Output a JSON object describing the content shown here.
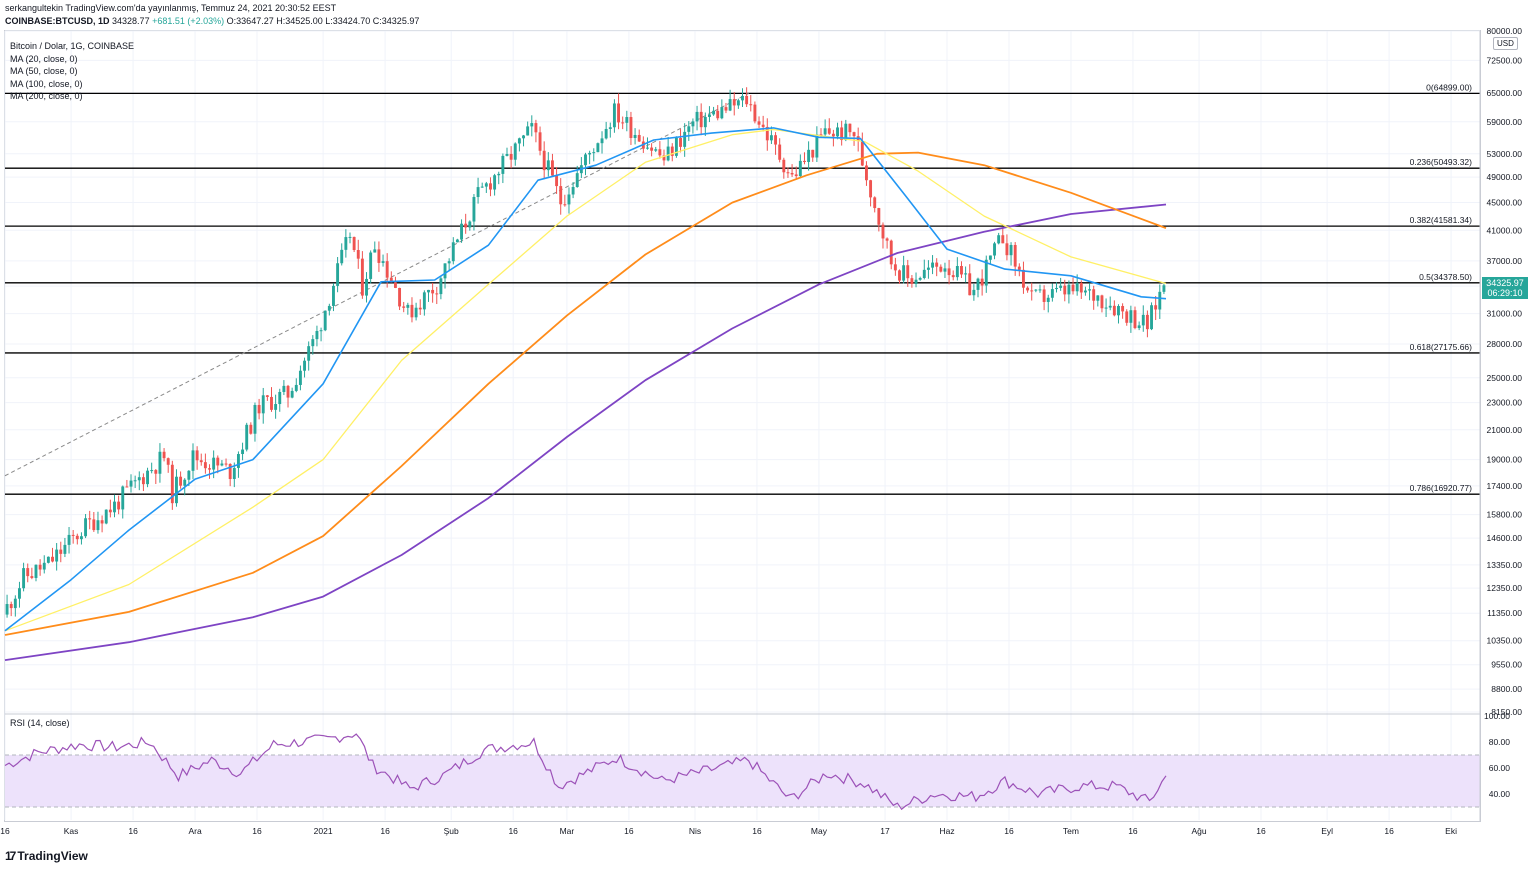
{
  "header": {
    "publisher_line": "serkangultekin TradingView.com'da yayınlanmış, Temmuz 24, 2021 20:30:52 EEST",
    "symbol": "COINBASE:BTCUSD, 1D",
    "last": "34328.77",
    "change": "+681.51 (+2.03%)",
    "ohlc": "O:33647.27 H:34525.00 L:33424.70 C:34325.97"
  },
  "legend": {
    "title": "Bitcoin / Dolar, 1G, COINBASE",
    "ma20": "MA (20, close, 0)",
    "ma50": "MA (50, close, 0)",
    "ma100": "MA (100, close, 0)",
    "ma200": "MA (200, close, 0)"
  },
  "rsi_label": "RSI (14, close)",
  "currency": "USD",
  "price_badge": {
    "price": "34325.97",
    "countdown": "06:29:10"
  },
  "footer": {
    "logo_text": "TradingView",
    "logo_glyph": "17"
  },
  "colors": {
    "up": "#26a69a",
    "down": "#ef5350",
    "ma20": "#2196f3",
    "ma50": "#fff066",
    "ma100": "#ff8c1a",
    "ma200": "#7e44c4",
    "rsi": "#9c52b8",
    "rsi_band": "#ede2fb"
  },
  "chart_data": {
    "type": "candlestick",
    "title": "Bitcoin / Dolar, 1G, COINBASE",
    "y_scale": "log",
    "ylim": [
      8150,
      80000
    ],
    "y_ticks": [
      80000,
      72500,
      65000,
      59000,
      53000,
      49000,
      45000,
      41000,
      37000,
      34000,
      31000,
      28000,
      25000,
      23000,
      21000,
      19000,
      17400,
      15800,
      14600,
      13350,
      12350,
      11350,
      10350,
      9550,
      8800,
      8150
    ],
    "x_ticks": [
      "16",
      "Kas",
      "16",
      "Ara",
      "16",
      "2021",
      "16",
      "Şub",
      "16",
      "Mar",
      "16",
      "Nis",
      "16",
      "May",
      "17",
      "Haz",
      "16",
      "Tem",
      "16",
      "Ağu",
      "16",
      "Eyl",
      "16",
      "Eki"
    ],
    "x_tick_dates": [
      "2020-10-16",
      "2020-11-01",
      "2020-11-16",
      "2020-12-01",
      "2020-12-16",
      "2021-01-01",
      "2021-01-16",
      "2021-02-01",
      "2021-02-16",
      "2021-03-01",
      "2021-03-16",
      "2021-04-01",
      "2021-04-16",
      "2021-05-01",
      "2021-05-17",
      "2021-06-01",
      "2021-06-16",
      "2021-07-01",
      "2021-07-16",
      "2021-08-01",
      "2021-08-16",
      "2021-09-01",
      "2021-09-16",
      "2021-10-01"
    ],
    "x_range": [
      "2020-10-16",
      "2021-10-08"
    ],
    "price_path": [
      [
        "2020-10-16",
        11300
      ],
      [
        "2020-10-21",
        12800
      ],
      [
        "2020-10-27",
        13400
      ],
      [
        "2020-11-05",
        15200
      ],
      [
        "2020-11-12",
        16300
      ],
      [
        "2020-11-18",
        17800
      ],
      [
        "2020-11-24",
        19200
      ],
      [
        "2020-11-26",
        17000
      ],
      [
        "2020-12-01",
        19200
      ],
      [
        "2020-12-10",
        18300
      ],
      [
        "2020-12-17",
        22800
      ],
      [
        "2020-12-24",
        23700
      ],
      [
        "2020-12-31",
        29000
      ],
      [
        "2021-01-08",
        40500
      ],
      [
        "2021-01-11",
        34000
      ],
      [
        "2021-01-14",
        39200
      ],
      [
        "2021-01-22",
        31000
      ],
      [
        "2021-01-29",
        34200
      ],
      [
        "2021-02-08",
        46000
      ],
      [
        "2021-02-21",
        57500
      ],
      [
        "2021-02-28",
        45200
      ],
      [
        "2021-03-13",
        61000
      ],
      [
        "2021-03-25",
        52000
      ],
      [
        "2021-04-01",
        58700
      ],
      [
        "2021-04-14",
        63500
      ],
      [
        "2021-04-25",
        49000
      ],
      [
        "2021-05-03",
        57000
      ],
      [
        "2021-05-10",
        56800
      ],
      [
        "2021-05-19",
        37000
      ],
      [
        "2021-05-23",
        34800
      ],
      [
        "2021-06-01",
        36700
      ],
      [
        "2021-06-08",
        33400
      ],
      [
        "2021-06-15",
        40200
      ],
      [
        "2021-06-22",
        32500
      ],
      [
        "2021-07-01",
        33500
      ],
      [
        "2021-07-08",
        32900
      ],
      [
        "2021-07-20",
        29800
      ],
      [
        "2021-07-24",
        34326
      ]
    ],
    "ma20": [
      [
        "2020-10-16",
        10700
      ],
      [
        "2020-11-01",
        12700
      ],
      [
        "2020-11-15",
        15000
      ],
      [
        "2020-12-01",
        17800
      ],
      [
        "2020-12-15",
        19000
      ],
      [
        "2021-01-01",
        24500
      ],
      [
        "2021-01-15",
        34500
      ],
      [
        "2021-01-28",
        34700
      ],
      [
        "2021-02-10",
        39000
      ],
      [
        "2021-02-22",
        48500
      ],
      [
        "2021-03-08",
        51000
      ],
      [
        "2021-03-22",
        55500
      ],
      [
        "2021-04-05",
        56800
      ],
      [
        "2021-04-20",
        57800
      ],
      [
        "2021-05-01",
        56000
      ],
      [
        "2021-05-11",
        55800
      ],
      [
        "2021-05-22",
        46000
      ],
      [
        "2021-06-01",
        38500
      ],
      [
        "2021-06-15",
        36000
      ],
      [
        "2021-07-01",
        35200
      ],
      [
        "2021-07-18",
        32800
      ],
      [
        "2021-07-24",
        32600
      ]
    ],
    "ma50": [
      [
        "2020-10-16",
        10700
      ],
      [
        "2020-11-15",
        12500
      ],
      [
        "2020-12-15",
        16200
      ],
      [
        "2021-01-01",
        19000
      ],
      [
        "2021-01-20",
        26500
      ],
      [
        "2021-02-10",
        34200
      ],
      [
        "2021-03-01",
        43000
      ],
      [
        "2021-03-20",
        51500
      ],
      [
        "2021-04-10",
        56500
      ],
      [
        "2021-04-20",
        57500
      ],
      [
        "2021-05-12",
        55200
      ],
      [
        "2021-05-25",
        50000
      ],
      [
        "2021-06-10",
        43000
      ],
      [
        "2021-07-01",
        37500
      ],
      [
        "2021-07-24",
        34300
      ]
    ],
    "ma100": [
      [
        "2020-10-16",
        10550
      ],
      [
        "2020-11-15",
        11400
      ],
      [
        "2020-12-15",
        13000
      ],
      [
        "2021-01-01",
        14700
      ],
      [
        "2021-01-20",
        18600
      ],
      [
        "2021-02-10",
        24500
      ],
      [
        "2021-03-01",
        30800
      ],
      [
        "2021-03-20",
        37800
      ],
      [
        "2021-04-10",
        45000
      ],
      [
        "2021-04-28",
        49300
      ],
      [
        "2021-05-15",
        53000
      ],
      [
        "2021-05-25",
        53200
      ],
      [
        "2021-06-10",
        51000
      ],
      [
        "2021-07-01",
        46500
      ],
      [
        "2021-07-24",
        41300
      ]
    ],
    "ma200": [
      [
        "2020-10-16",
        9700
      ],
      [
        "2020-11-15",
        10300
      ],
      [
        "2020-12-15",
        11200
      ],
      [
        "2021-01-01",
        12000
      ],
      [
        "2021-01-20",
        13800
      ],
      [
        "2021-02-10",
        16700
      ],
      [
        "2021-03-01",
        20500
      ],
      [
        "2021-03-20",
        24800
      ],
      [
        "2021-04-10",
        29500
      ],
      [
        "2021-05-01",
        34200
      ],
      [
        "2021-05-20",
        38000
      ],
      [
        "2021-06-10",
        40800
      ],
      [
        "2021-07-01",
        43300
      ],
      [
        "2021-07-24",
        44700
      ]
    ],
    "fib_levels": [
      {
        "label": "0(64899.00)",
        "value": 64899.0
      },
      {
        "label": "0.236(50493.32)",
        "value": 50493.32
      },
      {
        "label": "0.382(41581.34)",
        "value": 41581.34
      },
      {
        "label": "0.5(34378.50)",
        "value": 34378.5
      },
      {
        "label": "0.618(27175.66)",
        "value": 27175.66
      },
      {
        "label": "0.786(16920.77)",
        "value": 16920.77
      }
    ],
    "trendline": [
      [
        "2020-10-16",
        18000
      ],
      [
        "2021-04-14",
        64899
      ]
    ],
    "rsi": {
      "ylim": [
        20,
        100
      ],
      "y_ticks": [
        100,
        80,
        60,
        40
      ],
      "band": [
        30,
        70
      ],
      "values": [
        [
          "2020-10-16",
          62
        ],
        [
          "2020-10-24",
          72
        ],
        [
          "2020-11-03",
          78
        ],
        [
          "2020-11-12",
          76
        ],
        [
          "2020-11-20",
          80
        ],
        [
          "2020-11-27",
          54
        ],
        [
          "2020-12-05",
          66
        ],
        [
          "2020-12-12",
          56
        ],
        [
          "2020-12-20",
          78
        ],
        [
          "2021-01-02",
          82
        ],
        [
          "2021-01-09",
          87
        ],
        [
          "2021-01-13",
          62
        ],
        [
          "2021-01-22",
          44
        ],
        [
          "2021-01-30",
          54
        ],
        [
          "2021-02-09",
          74
        ],
        [
          "2021-02-21",
          80
        ],
        [
          "2021-02-27",
          46
        ],
        [
          "2021-03-13",
          68
        ],
        [
          "2021-03-24",
          50
        ],
        [
          "2021-04-04",
          58
        ],
        [
          "2021-04-14",
          66
        ],
        [
          "2021-04-24",
          36
        ],
        [
          "2021-05-03",
          56
        ],
        [
          "2021-05-12",
          48
        ],
        [
          "2021-05-20",
          30
        ],
        [
          "2021-05-29",
          40
        ],
        [
          "2021-06-08",
          38
        ],
        [
          "2021-06-15",
          50
        ],
        [
          "2021-06-23",
          40
        ],
        [
          "2021-07-03",
          46
        ],
        [
          "2021-07-12",
          46
        ],
        [
          "2021-07-20",
          34
        ],
        [
          "2021-07-24",
          54
        ]
      ]
    }
  }
}
